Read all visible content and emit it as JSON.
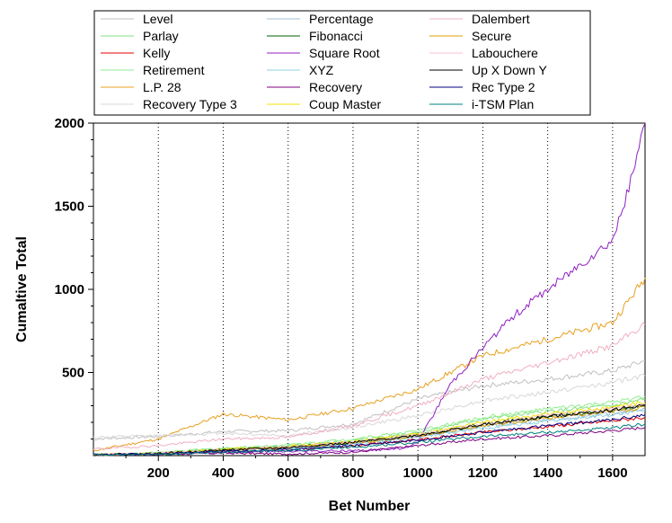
{
  "chart_data": {
    "type": "line",
    "xlabel": "Bet Number",
    "ylabel": "Cumaltive Total",
    "xlim": [
      0,
      1700
    ],
    "ylim": [
      0,
      2000
    ],
    "x_ticks": [
      200,
      400,
      600,
      800,
      1000,
      1200,
      1400,
      1600
    ],
    "y_ticks": [
      500,
      1000,
      1500,
      2000
    ],
    "grid": "vertical dotted",
    "legend_position": "top",
    "series": [
      {
        "name": "Level",
        "color": "#c0c0c0",
        "x": [
          0,
          200,
          400,
          600,
          800,
          1000,
          1200,
          1400,
          1600,
          1700
        ],
        "y": [
          100,
          115,
          145,
          150,
          190,
          340,
          420,
          460,
          510,
          570
        ]
      },
      {
        "name": "Parlay",
        "color": "#80e080",
        "x": [
          0,
          200,
          400,
          600,
          800,
          1000,
          1200,
          1400,
          1600,
          1700
        ],
        "y": [
          5,
          15,
          40,
          55,
          90,
          140,
          220,
          265,
          300,
          340
        ]
      },
      {
        "name": "Kelly",
        "color": "#e00000",
        "x": [
          0,
          200,
          400,
          600,
          800,
          1000,
          1200,
          1400,
          1600,
          1700
        ],
        "y": [
          5,
          10,
          25,
          35,
          60,
          95,
          140,
          175,
          210,
          230
        ]
      },
      {
        "name": "Retirement",
        "color": "#90ee90",
        "x": [
          0,
          200,
          400,
          600,
          800,
          1000,
          1200,
          1400,
          1600,
          1700
        ],
        "y": [
          5,
          18,
          45,
          65,
          100,
          150,
          230,
          280,
          320,
          355
        ]
      },
      {
        "name": "L.P. 28",
        "color": "#e8a020",
        "x": [
          0,
          200,
          400,
          600,
          800,
          1000,
          1200,
          1400,
          1600,
          1700
        ],
        "y": [
          30,
          100,
          250,
          215,
          285,
          400,
          600,
          700,
          800,
          1070
        ]
      },
      {
        "name": "Recovery Type 3",
        "color": "#d8d8d8",
        "x": [
          0,
          200,
          400,
          600,
          800,
          1000,
          1200,
          1400,
          1600,
          1700
        ],
        "y": [
          110,
          120,
          135,
          120,
          170,
          240,
          330,
          380,
          440,
          480
        ]
      },
      {
        "name": "Percentage",
        "color": "#a0c0d0",
        "x": [
          0,
          200,
          400,
          600,
          800,
          1000,
          1200,
          1400,
          1600,
          1700
        ],
        "y": [
          5,
          12,
          30,
          45,
          75,
          115,
          175,
          215,
          255,
          280
        ]
      },
      {
        "name": "Fibonacci",
        "color": "#006000",
        "x": [
          0,
          200,
          400,
          600,
          800,
          1000,
          1200,
          1400,
          1600,
          1700
        ],
        "y": [
          5,
          12,
          35,
          50,
          80,
          120,
          190,
          235,
          270,
          300
        ]
      },
      {
        "name": "Square Root",
        "color": "#9020c0",
        "x": [
          0,
          200,
          400,
          600,
          800,
          950,
          1000,
          1100,
          1200,
          1300,
          1400,
          1500,
          1600,
          1650,
          1700
        ],
        "y": [
          5,
          10,
          20,
          25,
          30,
          40,
          80,
          430,
          650,
          850,
          1000,
          1150,
          1300,
          1600,
          2000
        ]
      },
      {
        "name": "XYZ",
        "color": "#90d0e0",
        "x": [
          0,
          200,
          400,
          600,
          800,
          1000,
          1200,
          1400,
          1600,
          1700
        ],
        "y": [
          5,
          10,
          28,
          40,
          70,
          110,
          165,
          205,
          245,
          270
        ]
      },
      {
        "name": "Recovery",
        "color": "#800080",
        "x": [
          0,
          200,
          400,
          600,
          800,
          1000,
          1200,
          1400,
          1600,
          1700
        ],
        "y": [
          5,
          8,
          15,
          10,
          20,
          60,
          100,
          120,
          150,
          170
        ]
      },
      {
        "name": "Coup Master",
        "color": "#f0e000",
        "x": [
          0,
          200,
          400,
          600,
          800,
          1000,
          1200,
          1400,
          1600,
          1700
        ],
        "y": [
          5,
          14,
          38,
          55,
          85,
          130,
          200,
          250,
          290,
          320
        ]
      },
      {
        "name": "Dalembert",
        "color": "#f0b0c0",
        "x": [
          0,
          200,
          400,
          600,
          800,
          1000,
          1200,
          1400,
          1600,
          1700
        ],
        "y": [
          40,
          60,
          100,
          110,
          180,
          300,
          460,
          560,
          660,
          790
        ]
      },
      {
        "name": "Secure",
        "color": "#e0a000",
        "x": [
          0,
          200,
          400,
          600,
          800,
          1000,
          1200,
          1400,
          1600,
          1700
        ],
        "y": [
          5,
          12,
          32,
          48,
          78,
          120,
          180,
          225,
          265,
          290
        ]
      },
      {
        "name": "Labouchere",
        "color": "#ffc0d0",
        "x": [
          0,
          200,
          400,
          600,
          800,
          1000,
          1200,
          1400,
          1600,
          1700
        ],
        "y": [
          5,
          13,
          36,
          52,
          82,
          125,
          190,
          240,
          280,
          310
        ]
      },
      {
        "name": "Up X Down Y",
        "color": "#000000",
        "x": [
          0,
          200,
          400,
          600,
          800,
          1000,
          1200,
          1400,
          1600,
          1700
        ],
        "y": [
          5,
          12,
          33,
          48,
          78,
          122,
          185,
          235,
          275,
          305
        ]
      },
      {
        "name": "Rec Type 2",
        "color": "#000080",
        "x": [
          0,
          200,
          400,
          600,
          800,
          1000,
          1200,
          1400,
          1600,
          1700
        ],
        "y": [
          5,
          10,
          25,
          35,
          60,
          95,
          140,
          180,
          215,
          245
        ]
      },
      {
        "name": "i-TSM Plan",
        "color": "#008080",
        "x": [
          0,
          200,
          400,
          600,
          800,
          1000,
          1200,
          1400,
          1600,
          1700
        ],
        "y": [
          5,
          8,
          20,
          30,
          50,
          80,
          115,
          140,
          165,
          190
        ]
      }
    ]
  }
}
